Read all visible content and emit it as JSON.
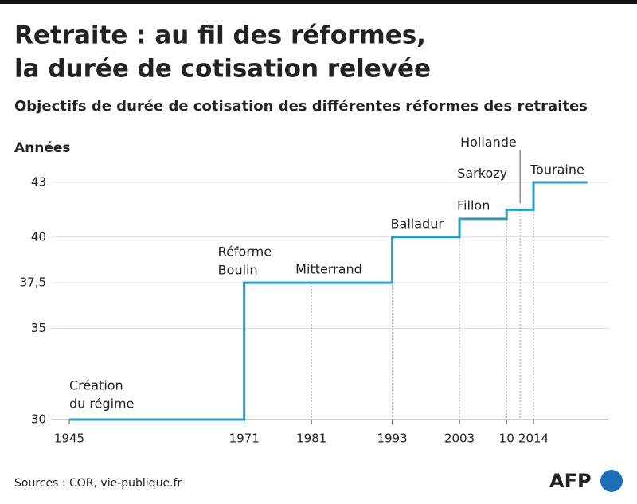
{
  "chart_data": {
    "type": "step",
    "title": [
      "Retraite : au fil des réformes,",
      "la durée de cotisation relevée"
    ],
    "subtitle": "Objectifs de durée de cotisation des différentes réformes des retraites",
    "y_label": "Années",
    "x": [
      1945,
      1971,
      1993,
      2003,
      2010,
      2014,
      2022
    ],
    "values": [
      30,
      37.5,
      40,
      41,
      41.5,
      43,
      43
    ],
    "color": "#2b9cbd",
    "xlim": [
      1945,
      2022
    ],
    "ylim": [
      30,
      43
    ],
    "xticks": [
      1945,
      1971,
      1981,
      1993,
      2003,
      {
        "value": 2010,
        "label": "10"
      },
      2014
    ],
    "yticks": [
      30,
      35,
      {
        "value": 37.5,
        "label": "37,5"
      },
      40,
      43
    ],
    "grid": true,
    "annotations": [
      {
        "label": [
          "Création",
          "du régime"
        ],
        "x": 1945
      },
      {
        "label": [
          "Réforme",
          "Boulin"
        ],
        "x": 1971
      },
      {
        "label": [
          "Mitterrand"
        ],
        "x": 1981
      },
      {
        "label": [
          "Balladur"
        ],
        "x": 1993
      },
      {
        "label": [
          "Fillon"
        ],
        "x": 2003
      },
      {
        "label": [
          "Sarkozy"
        ],
        "x": 2010
      },
      {
        "label": [
          "Hollande"
        ],
        "x": 2012
      },
      {
        "label": [
          "Touraine"
        ],
        "x": 2014
      }
    ],
    "source": "Sources : COR, vie-publique.fr",
    "logo": "AFP"
  }
}
